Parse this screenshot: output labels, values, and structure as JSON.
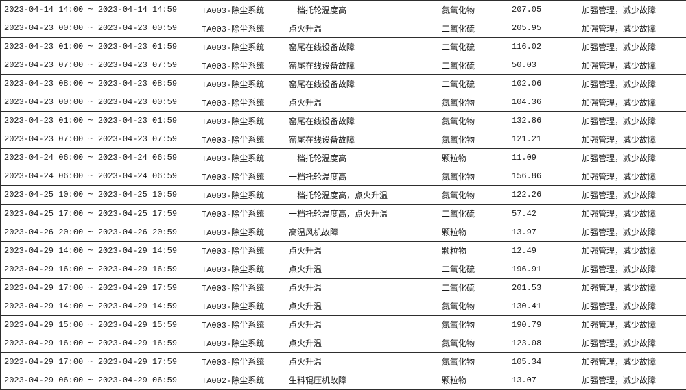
{
  "colors": {
    "background": "#ffffff",
    "border": "#2e2e2e",
    "text": "#1c1c1c"
  },
  "table": {
    "rows": [
      [
        "2023-04-14 14:00 ~ 2023-04-14 14:59",
        "TA003-除尘系统",
        "一档托轮温度高",
        "氮氧化物",
        "207.05",
        "加强管理，减少故障"
      ],
      [
        "2023-04-23 00:00 ~ 2023-04-23 00:59",
        "TA003-除尘系统",
        "点火升温",
        "二氧化硫",
        "205.95",
        "加强管理，减少故障"
      ],
      [
        "2023-04-23 01:00 ~ 2023-04-23 01:59",
        "TA003-除尘系统",
        "窑尾在线设备故障",
        "二氧化硫",
        "116.02",
        "加强管理，减少故障"
      ],
      [
        "2023-04-23 07:00 ~ 2023-04-23 07:59",
        "TA003-除尘系统",
        "窑尾在线设备故障",
        "二氧化硫",
        "50.03",
        "加强管理，减少故障"
      ],
      [
        "2023-04-23 08:00 ~ 2023-04-23 08:59",
        "TA003-除尘系统",
        "窑尾在线设备故障",
        "二氧化硫",
        "102.06",
        "加强管理，减少故障"
      ],
      [
        "2023-04-23 00:00 ~ 2023-04-23 00:59",
        "TA003-除尘系统",
        "点火升温",
        "氮氧化物",
        "104.36",
        "加强管理，减少故障"
      ],
      [
        "2023-04-23 01:00 ~ 2023-04-23 01:59",
        "TA003-除尘系统",
        "窑尾在线设备故障",
        "氮氧化物",
        "132.86",
        "加强管理，减少故障"
      ],
      [
        "2023-04-23 07:00 ~ 2023-04-23 07:59",
        "TA003-除尘系统",
        "窑尾在线设备故障",
        "氮氧化物",
        "121.21",
        "加强管理，减少故障"
      ],
      [
        "2023-04-24 06:00 ~ 2023-04-24 06:59",
        "TA003-除尘系统",
        "一档托轮温度高",
        "颗粒物",
        "11.09",
        "加强管理，减少故障"
      ],
      [
        "2023-04-24 06:00 ~ 2023-04-24 06:59",
        "TA003-除尘系统",
        "一档托轮温度高",
        "氮氧化物",
        "156.86",
        "加强管理，减少故障"
      ],
      [
        "2023-04-25 10:00 ~ 2023-04-25 10:59",
        "TA003-除尘系统",
        "一档托轮温度高，点火升温",
        "氮氧化物",
        "122.26",
        "加强管理，减少故障"
      ],
      [
        "2023-04-25 17:00 ~ 2023-04-25 17:59",
        "TA003-除尘系统",
        "一档托轮温度高，点火升温",
        "二氧化硫",
        "57.42",
        "加强管理，减少故障"
      ],
      [
        "2023-04-26 20:00 ~ 2023-04-26 20:59",
        "TA003-除尘系统",
        "高温风机故障",
        "颗粒物",
        "13.97",
        "加强管理，减少故障"
      ],
      [
        "2023-04-29 14:00 ~ 2023-04-29 14:59",
        "TA003-除尘系统",
        "点火升温",
        "颗粒物",
        "12.49",
        "加强管理，减少故障"
      ],
      [
        "2023-04-29 16:00 ~ 2023-04-29 16:59",
        "TA003-除尘系统",
        "点火升温",
        "二氧化硫",
        "196.91",
        "加强管理，减少故障"
      ],
      [
        "2023-04-29 17:00 ~ 2023-04-29 17:59",
        "TA003-除尘系统",
        "点火升温",
        "二氧化硫",
        "201.53",
        "加强管理，减少故障"
      ],
      [
        "2023-04-29 14:00 ~ 2023-04-29 14:59",
        "TA003-除尘系统",
        "点火升温",
        "氮氧化物",
        "130.41",
        "加强管理，减少故障"
      ],
      [
        "2023-04-29 15:00 ~ 2023-04-29 15:59",
        "TA003-除尘系统",
        "点火升温",
        "氮氧化物",
        "190.79",
        "加强管理，减少故障"
      ],
      [
        "2023-04-29 16:00 ~ 2023-04-29 16:59",
        "TA003-除尘系统",
        "点火升温",
        "氮氧化物",
        "123.08",
        "加强管理，减少故障"
      ],
      [
        "2023-04-29 17:00 ~ 2023-04-29 17:59",
        "TA003-除尘系统",
        "点火升温",
        "氮氧化物",
        "105.34",
        "加强管理，减少故障"
      ],
      [
        "2023-04-29 06:00 ~ 2023-04-29 06:59",
        "TA002-除尘系统",
        "生料辊压机故障",
        "颗粒物",
        "13.07",
        "加强管理，减少故障"
      ]
    ]
  }
}
